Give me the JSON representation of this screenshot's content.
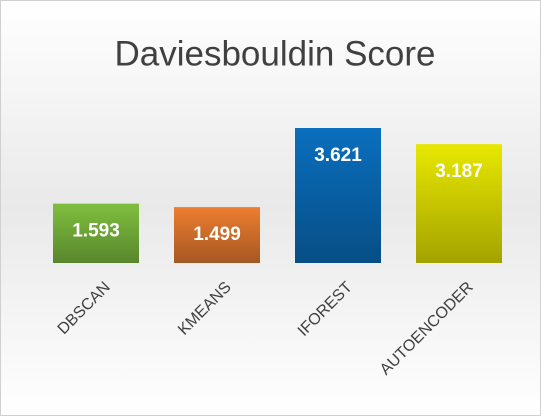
{
  "chart_data": {
    "type": "bar",
    "title": "Daviesbouldin Score",
    "categories": [
      "DBSCAN",
      "KMEANS",
      "IFOREST",
      "AUTOENCODER"
    ],
    "values": [
      1.593,
      1.499,
      3.621,
      3.187
    ],
    "colors": [
      "#7fbf3f",
      "#ed7d31",
      "#0a6fbe",
      "#e8e800"
    ],
    "data_labels": true,
    "grid": false
  }
}
